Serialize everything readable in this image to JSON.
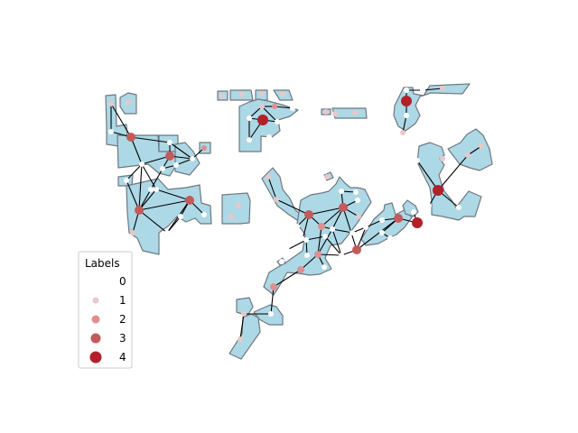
{
  "chart_data": {
    "type": "map-graph",
    "polygon_fill": "#add8e6",
    "polygon_edge": "#6f7880",
    "edge_color": "#000000",
    "legend": {
      "title": "Labels",
      "placement": "lower-left",
      "entries": [
        {
          "label": "0",
          "color": "#ffffff"
        },
        {
          "label": "1",
          "color": "#e8c8c8"
        },
        {
          "label": "2",
          "color": "#de8f8f"
        },
        {
          "label": "3",
          "color": "#c45a5a"
        },
        {
          "label": "4",
          "color": "#b2202a"
        }
      ]
    }
  }
}
